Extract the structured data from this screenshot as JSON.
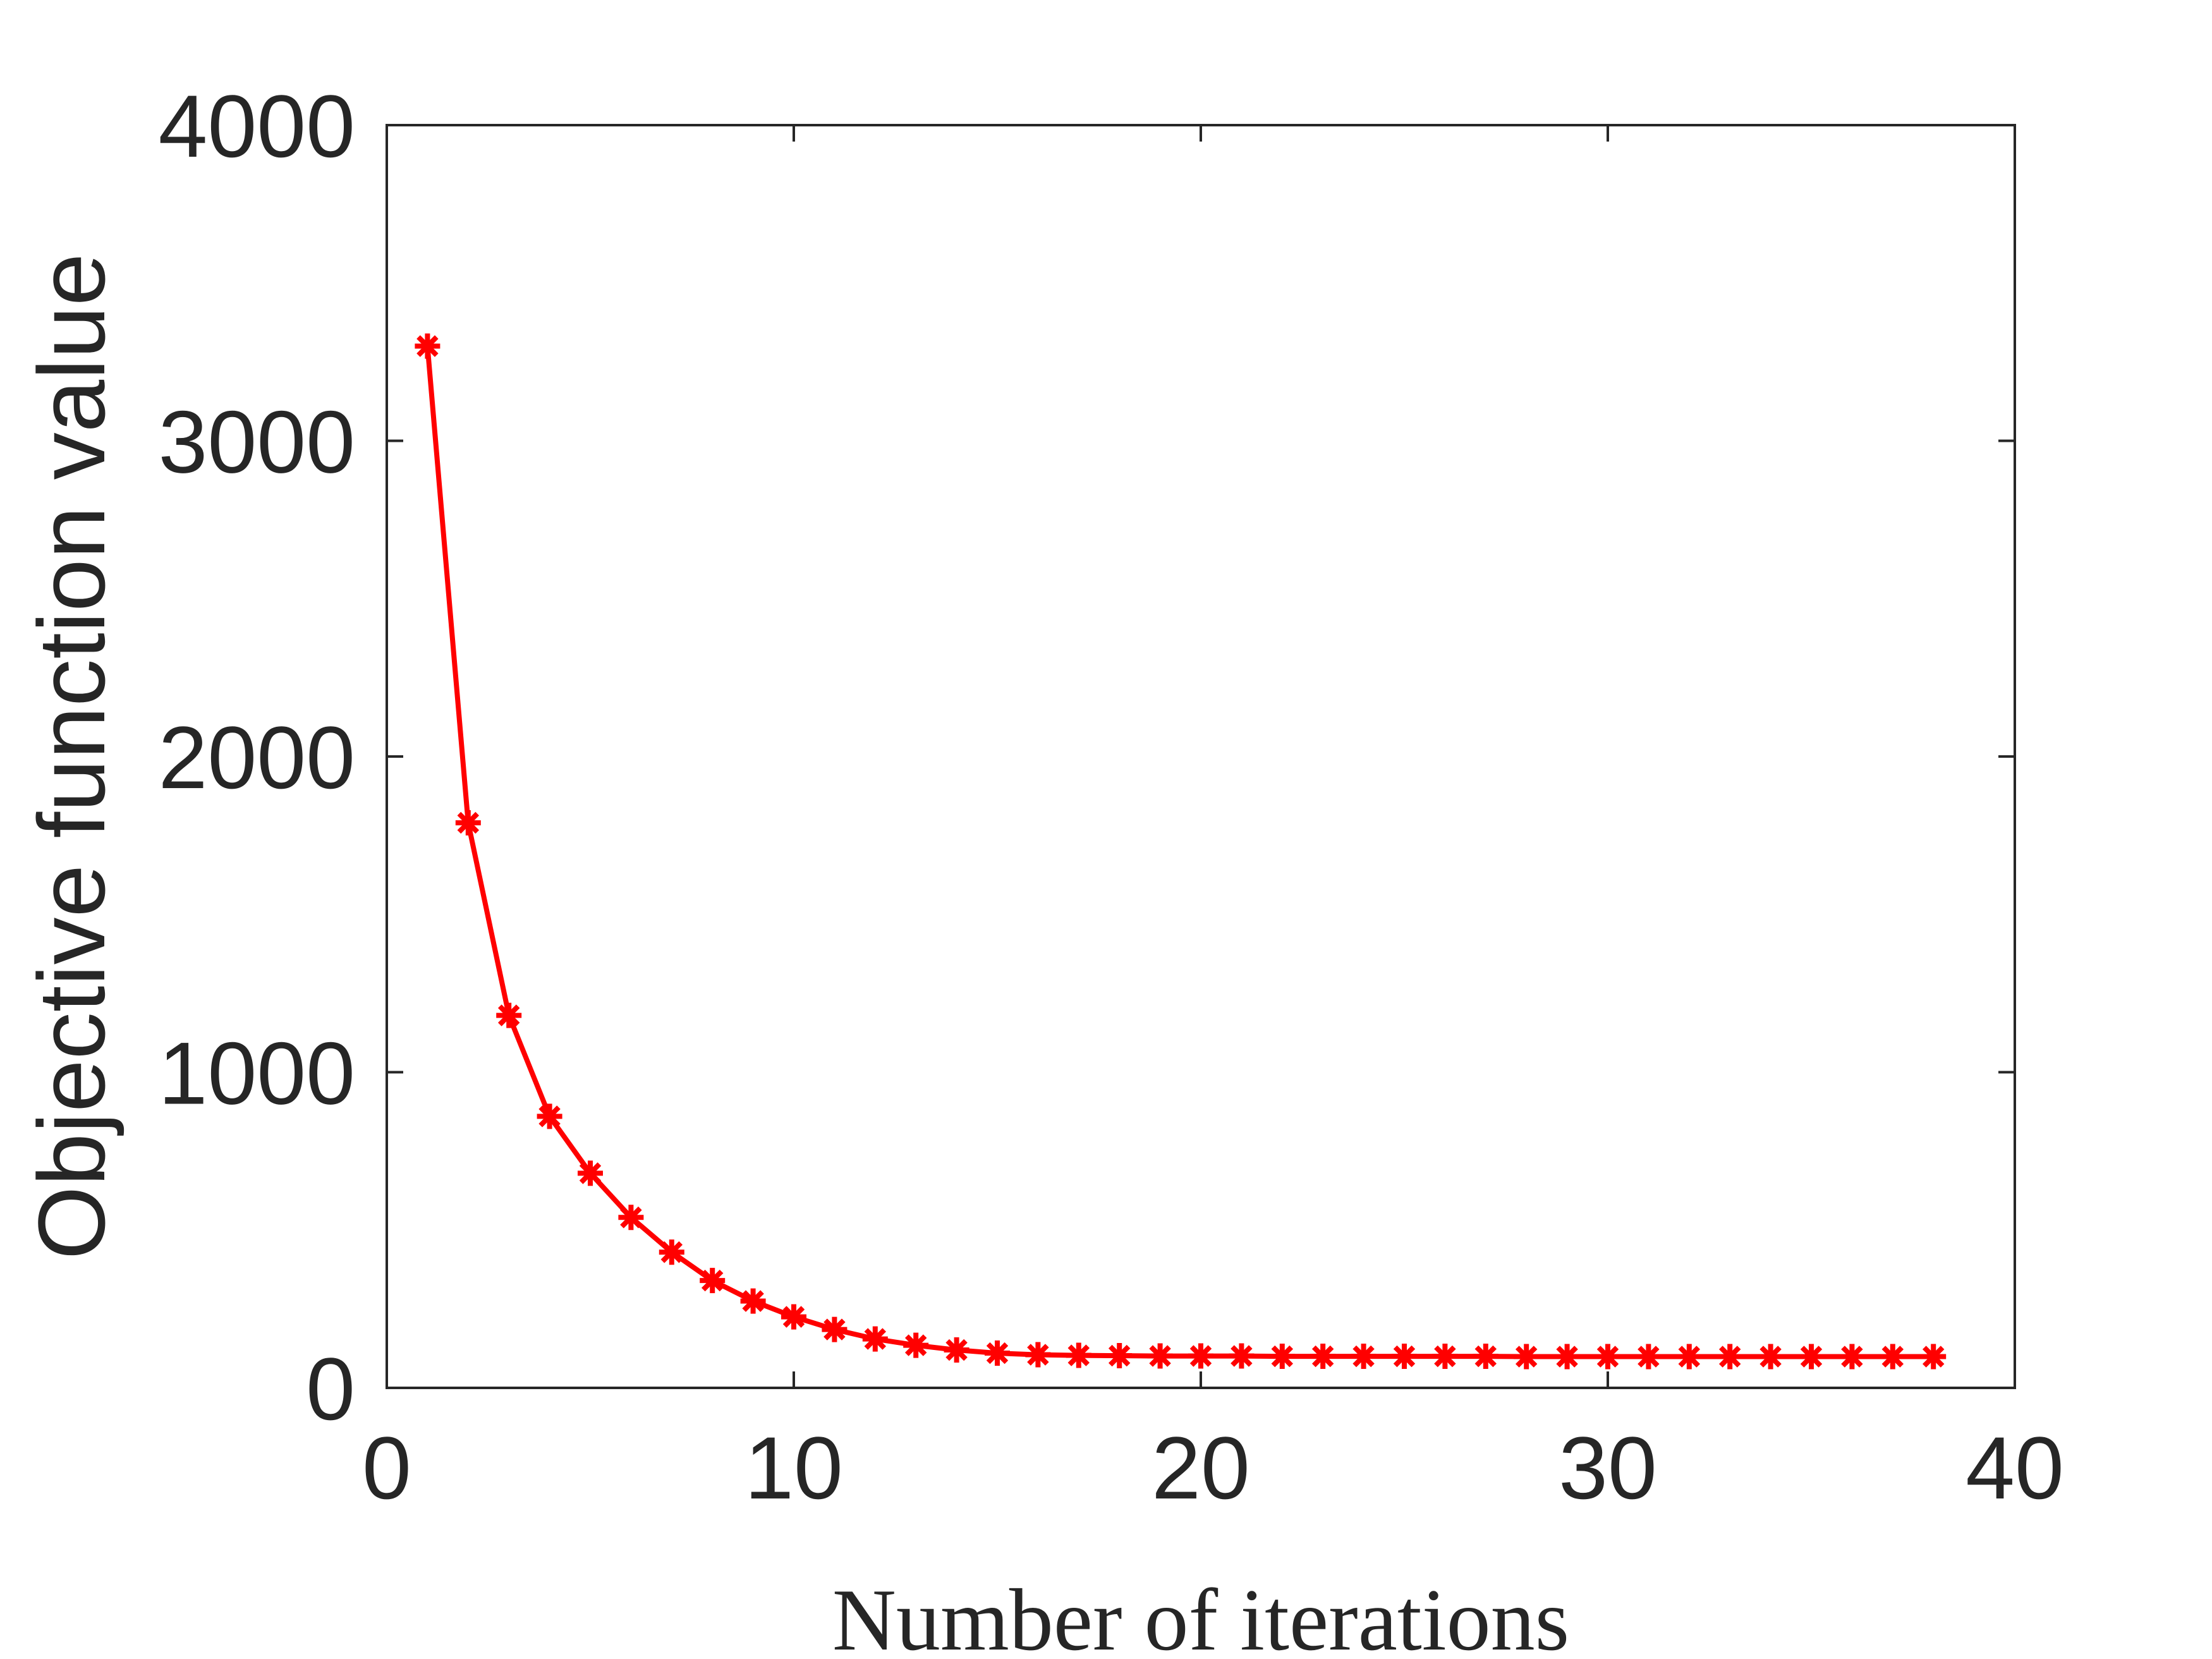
{
  "chart_data": {
    "type": "line",
    "xlabel": "Number of iterations",
    "ylabel": "Objective function value",
    "xlim": [
      0,
      40
    ],
    "ylim": [
      0,
      4000
    ],
    "xticks": [
      0,
      10,
      20,
      30,
      40
    ],
    "yticks": [
      0,
      1000,
      2000,
      3000,
      4000
    ],
    "grid": false,
    "series": [
      {
        "color": "#ff0000",
        "marker": "asterisk",
        "x": [
          1,
          2,
          3,
          4,
          5,
          6,
          7,
          8,
          9,
          10,
          11,
          12,
          13,
          14,
          15,
          16,
          17,
          18,
          19,
          20,
          21,
          22,
          23,
          24,
          25,
          26,
          27,
          28,
          29,
          30,
          31,
          32,
          33,
          34,
          35,
          36,
          37,
          38
        ],
        "y": [
          3300,
          1790,
          1180,
          860,
          680,
          540,
          430,
          340,
          275,
          225,
          185,
          155,
          135,
          120,
          110,
          105,
          103,
          102,
          101,
          101,
          101,
          100,
          100,
          100,
          100,
          100,
          100,
          99,
          99,
          99,
          99,
          99,
          99,
          99,
          99,
          99,
          99,
          99
        ]
      }
    ]
  }
}
